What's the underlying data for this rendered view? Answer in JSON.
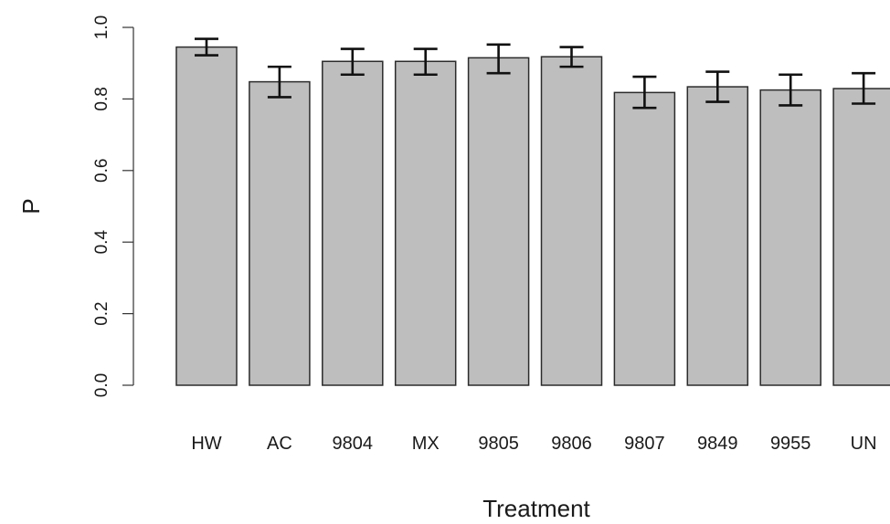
{
  "chart_data": {
    "type": "bar",
    "xlabel": "Treatment",
    "ylabel": "P",
    "ylim": [
      0,
      1
    ],
    "yticks": [
      "0.0",
      "0.2",
      "0.4",
      "0.6",
      "0.8",
      "1.0"
    ],
    "categories": [
      "HW",
      "AC",
      "9804",
      "MX",
      "9805",
      "9806",
      "9807",
      "9849",
      "9955",
      "UN"
    ],
    "values": [
      0.945,
      0.848,
      0.905,
      0.905,
      0.915,
      0.918,
      0.818,
      0.834,
      0.825,
      0.829
    ],
    "error_low": [
      0.922,
      0.805,
      0.868,
      0.868,
      0.872,
      0.89,
      0.775,
      0.792,
      0.782,
      0.787
    ],
    "error_high": [
      0.968,
      0.89,
      0.94,
      0.94,
      0.952,
      0.945,
      0.862,
      0.876,
      0.868,
      0.872
    ],
    "grid": false,
    "legend": "none",
    "colors": {
      "bar_fill": "#bebebe",
      "bar_border": "#2b2b2b",
      "error_bar": "#111111"
    }
  }
}
